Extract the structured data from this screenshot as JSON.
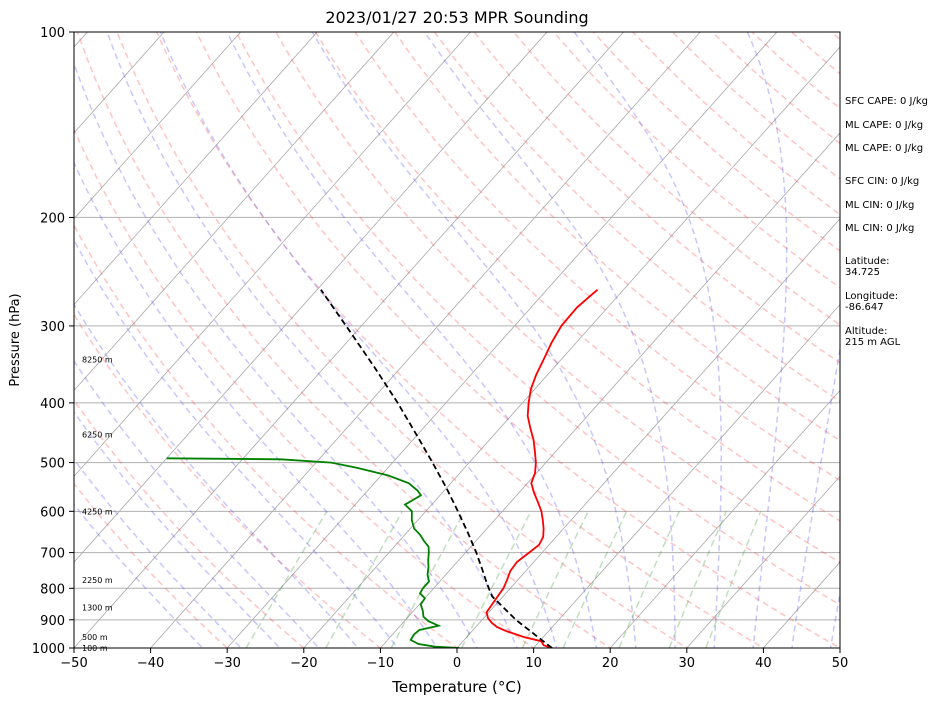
{
  "chart_data": {
    "type": "skew-t",
    "title": "2023/01/27 20:53 MPR Sounding",
    "xlabel": "Temperature (°C)",
    "ylabel": "Pressure (hPa)",
    "xlim": [
      -50,
      50
    ],
    "ylim": [
      1000,
      100
    ],
    "x_ticks": [
      -50,
      -40,
      -30,
      -20,
      -10,
      0,
      10,
      20,
      30,
      40,
      50
    ],
    "y_ticks": [
      100,
      200,
      300,
      400,
      500,
      600,
      700,
      800,
      900,
      1000
    ],
    "grid": true,
    "series": [
      {
        "kind": "temperature",
        "color": "#ff0000",
        "points": [
          [
            1000,
            12.4
          ],
          [
            990,
            11.0
          ],
          [
            975,
            10.2
          ],
          [
            960,
            7.5
          ],
          [
            940,
            4.6
          ],
          [
            925,
            2.8
          ],
          [
            910,
            1.6
          ],
          [
            895,
            0.6
          ],
          [
            875,
            -0.3
          ],
          [
            850,
            -0.5
          ],
          [
            825,
            -0.7
          ],
          [
            800,
            -0.9
          ],
          [
            775,
            -1.4
          ],
          [
            750,
            -2.0
          ],
          [
            725,
            -2.2
          ],
          [
            700,
            -1.7
          ],
          [
            680,
            -1.3
          ],
          [
            660,
            -1.7
          ],
          [
            640,
            -2.6
          ],
          [
            620,
            -3.7
          ],
          [
            600,
            -4.9
          ],
          [
            580,
            -6.4
          ],
          [
            560,
            -8.0
          ],
          [
            540,
            -9.5
          ],
          [
            520,
            -10.2
          ],
          [
            500,
            -11.3
          ],
          [
            480,
            -12.7
          ],
          [
            460,
            -14.2
          ],
          [
            440,
            -16.0
          ],
          [
            420,
            -17.8
          ],
          [
            400,
            -19.2
          ],
          [
            380,
            -20.5
          ],
          [
            360,
            -21.5
          ],
          [
            340,
            -22.3
          ],
          [
            320,
            -23.2
          ],
          [
            300,
            -23.9
          ],
          [
            280,
            -24.0
          ],
          [
            262,
            -23.4
          ]
        ]
      },
      {
        "kind": "dewpoint",
        "color": "#008000",
        "points": [
          [
            1000,
            0.3
          ],
          [
            995,
            -3.0
          ],
          [
            985,
            -5.5
          ],
          [
            970,
            -7.0
          ],
          [
            950,
            -7.2
          ],
          [
            935,
            -7.0
          ],
          [
            920,
            -5.0
          ],
          [
            905,
            -6.8
          ],
          [
            890,
            -8.0
          ],
          [
            870,
            -8.8
          ],
          [
            850,
            -9.8
          ],
          [
            830,
            -10.0
          ],
          [
            815,
            -11.2
          ],
          [
            800,
            -11.4
          ],
          [
            780,
            -11.4
          ],
          [
            760,
            -12.4
          ],
          [
            740,
            -13.1
          ],
          [
            720,
            -14.0
          ],
          [
            700,
            -14.8
          ],
          [
            685,
            -15.5
          ],
          [
            670,
            -16.8
          ],
          [
            655,
            -18.0
          ],
          [
            640,
            -19.5
          ],
          [
            620,
            -20.8
          ],
          [
            600,
            -21.8
          ],
          [
            585,
            -23.5
          ],
          [
            575,
            -23.0
          ],
          [
            565,
            -22.5
          ],
          [
            555,
            -23.5
          ],
          [
            540,
            -25.5
          ],
          [
            525,
            -29.0
          ],
          [
            510,
            -34.0
          ],
          [
            500,
            -38.0
          ],
          [
            494,
            -45.0
          ],
          [
            492,
            -60.0
          ]
        ]
      },
      {
        "kind": "parcel",
        "color": "#000000",
        "style": "dashed",
        "points": [
          [
            1000,
            12.4
          ],
          [
            950,
            8.5
          ],
          [
            900,
            4.4
          ],
          [
            850,
            0.6
          ],
          [
            825,
            -1.4
          ],
          [
            800,
            -2.8
          ],
          [
            775,
            -4.2
          ],
          [
            750,
            -5.6
          ],
          [
            700,
            -8.6
          ],
          [
            650,
            -12.0
          ],
          [
            600,
            -15.8
          ],
          [
            550,
            -20.0
          ],
          [
            500,
            -24.8
          ],
          [
            450,
            -30.2
          ],
          [
            400,
            -36.3
          ],
          [
            350,
            -43.5
          ],
          [
            300,
            -52.0
          ],
          [
            262,
            -59.5
          ]
        ]
      }
    ],
    "height_labels": [
      {
        "pressure": 1000,
        "text": "100 m"
      },
      {
        "pressure": 960,
        "text": "500 m"
      },
      {
        "pressure": 860,
        "text": "1300 m"
      },
      {
        "pressure": 775,
        "text": "2250 m"
      },
      {
        "pressure": 600,
        "text": "4250 m"
      },
      {
        "pressure": 450,
        "text": "6250 m"
      },
      {
        "pressure": 340,
        "text": "8250 m"
      }
    ],
    "indices": [
      "SFC CAPE: 0 J/kg",
      "ML CAPE: 0 J/kg",
      "ML CAPE: 0 J/kg",
      "SFC CIN: 0 J/kg",
      "ML CIN: 0 J/kg",
      "ML CIN: 0 J/kg"
    ],
    "station": {
      "latitude_label": "Latitude:",
      "latitude": "34.725",
      "longitude_label": "Longitude:",
      "longitude": "-86.647",
      "altitude_label": "Altitude:",
      "altitude": "215 m AGL"
    },
    "colors": {
      "dry_adiabats": "#ff0000",
      "moist_adiabats": "#0000ff",
      "mixing_ratio": "#008000",
      "isotherms": "#808080",
      "isobars": "#808080"
    }
  }
}
